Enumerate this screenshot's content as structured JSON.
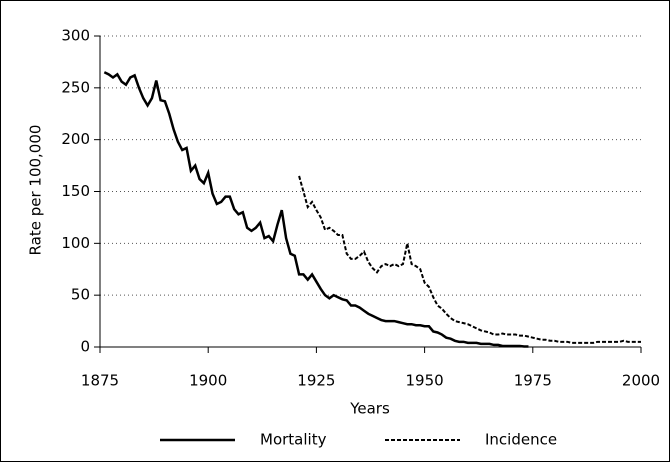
{
  "chart_data": {
    "type": "line",
    "x_label": "Years",
    "y_label": "Rate per 100,000",
    "xlim": [
      1875,
      2000
    ],
    "xticks": [
      1875,
      1900,
      1925,
      1950,
      1975,
      2000
    ],
    "ylim": [
      0,
      300
    ],
    "yticks": [
      0,
      50,
      100,
      150,
      200,
      250,
      300
    ],
    "grid": true,
    "legend": "bottom",
    "series": [
      {
        "name": "Mortality",
        "color": "#000000",
        "style": "solid",
        "x": [
          1876,
          1877,
          1878,
          1879,
          1880,
          1881,
          1882,
          1883,
          1884,
          1885,
          1886,
          1887,
          1888,
          1889,
          1890,
          1891,
          1892,
          1893,
          1894,
          1895,
          1896,
          1897,
          1898,
          1899,
          1900,
          1901,
          1902,
          1903,
          1904,
          1905,
          1906,
          1907,
          1908,
          1909,
          1910,
          1911,
          1912,
          1913,
          1914,
          1915,
          1916,
          1917,
          1918,
          1919,
          1920,
          1921,
          1922,
          1923,
          1924,
          1925,
          1926,
          1927,
          1928,
          1929,
          1930,
          1931,
          1932,
          1933,
          1934,
          1935,
          1936,
          1937,
          1938,
          1939,
          1940,
          1941,
          1942,
          1943,
          1944,
          1945,
          1946,
          1947,
          1948,
          1949,
          1950,
          1951,
          1952,
          1953,
          1954,
          1955,
          1956,
          1957,
          1958,
          1959,
          1960,
          1961,
          1962,
          1963,
          1964,
          1965,
          1966,
          1967,
          1968,
          1969,
          1970,
          1971,
          1972,
          1973,
          1974
        ],
        "values": [
          265,
          263,
          260,
          263,
          256,
          253,
          260,
          262,
          250,
          240,
          233,
          240,
          257,
          238,
          237,
          225,
          210,
          198,
          190,
          192,
          170,
          175,
          162,
          158,
          168,
          148,
          138,
          140,
          145,
          145,
          133,
          128,
          130,
          115,
          112,
          115,
          120,
          105,
          107,
          102,
          118,
          132,
          105,
          90,
          88,
          70,
          70,
          65,
          70,
          63,
          56,
          50,
          47,
          50,
          48,
          46,
          45,
          40,
          40,
          38,
          35,
          32,
          30,
          28,
          26,
          25,
          25,
          25,
          24,
          23,
          22,
          22,
          21,
          21,
          20,
          20,
          15,
          14,
          12,
          9,
          8,
          6,
          5,
          5,
          4,
          4,
          4,
          3,
          3,
          3,
          2,
          2,
          1,
          1,
          1,
          1,
          1,
          0.5,
          0.5
        ]
      },
      {
        "name": "Incidence",
        "color": "#000000",
        "style": "dashed",
        "x": [
          1921,
          1922,
          1923,
          1924,
          1925,
          1926,
          1927,
          1928,
          1929,
          1930,
          1931,
          1932,
          1933,
          1934,
          1935,
          1936,
          1937,
          1938,
          1939,
          1940,
          1941,
          1942,
          1943,
          1944,
          1945,
          1946,
          1947,
          1948,
          1949,
          1950,
          1951,
          1952,
          1953,
          1954,
          1955,
          1956,
          1957,
          1958,
          1959,
          1960,
          1961,
          1962,
          1963,
          1964,
          1965,
          1966,
          1967,
          1968,
          1969,
          1970,
          1971,
          1972,
          1973,
          1974,
          1975,
          1976,
          1977,
          1978,
          1979,
          1980,
          1981,
          1982,
          1983,
          1984,
          1985,
          1986,
          1987,
          1988,
          1989,
          1990,
          1991,
          1992,
          1993,
          1994,
          1995,
          1996,
          1997,
          1998,
          1999,
          2000
        ],
        "values": [
          165,
          150,
          135,
          140,
          132,
          125,
          113,
          115,
          112,
          108,
          108,
          90,
          85,
          85,
          88,
          92,
          82,
          76,
          72,
          78,
          80,
          78,
          80,
          78,
          80,
          100,
          80,
          78,
          75,
          62,
          58,
          48,
          40,
          37,
          32,
          28,
          25,
          24,
          23,
          22,
          20,
          18,
          16,
          15,
          14,
          12,
          12,
          13,
          12,
          12,
          12,
          11,
          11,
          10,
          9,
          8,
          7,
          7,
          6,
          6,
          5,
          5,
          5,
          4,
          4,
          4,
          4,
          4,
          4,
          5,
          5,
          5,
          5,
          5,
          5,
          6,
          5,
          5,
          5,
          5
        ]
      }
    ]
  }
}
